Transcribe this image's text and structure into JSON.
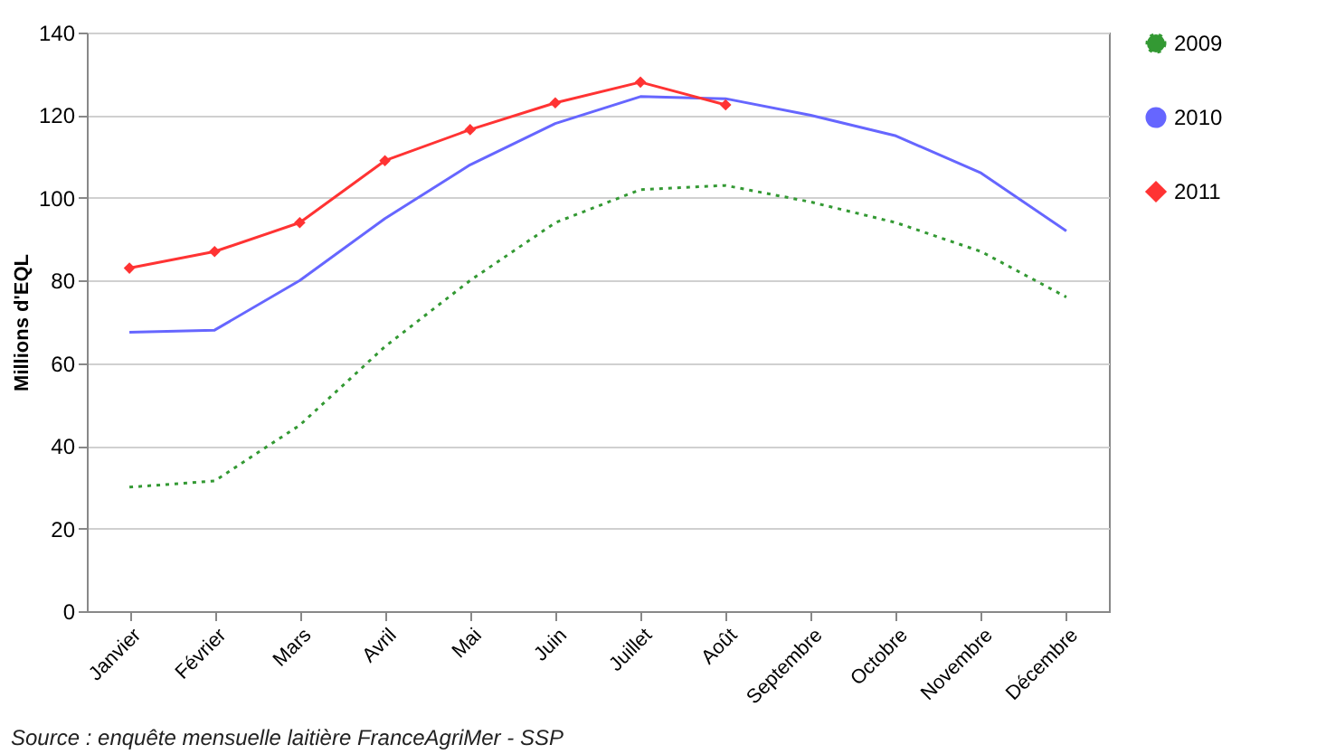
{
  "chart_data": {
    "type": "line",
    "ylabel": "Millions d'EQL",
    "categories": [
      "Janvier",
      "Février",
      "Mars",
      "Avril",
      "Mai",
      "Juin",
      "Juillet",
      "Août",
      "Septembre",
      "Octobre",
      "Novembre",
      "Décembre"
    ],
    "series": [
      {
        "name": "2009",
        "color": "#339933",
        "line_style": "dotted",
        "marker": "none",
        "values": [
          30,
          31.5,
          45,
          64,
          80,
          94,
          102,
          103,
          99,
          94,
          87,
          76
        ]
      },
      {
        "name": "2010",
        "color": "#6666ff",
        "line_style": "solid",
        "marker": "none",
        "values": [
          67.5,
          68,
          80,
          95,
          108,
          118,
          124.5,
          124,
          120,
          115,
          106,
          92
        ]
      },
      {
        "name": "2011",
        "color": "#ff3333",
        "line_style": "solid",
        "marker": "diamond",
        "values": [
          83,
          87,
          94,
          109,
          116.5,
          123,
          128,
          122.5,
          null,
          null,
          null,
          null
        ]
      }
    ],
    "ylim": [
      0,
      140
    ],
    "yticks": [
      0,
      20,
      40,
      60,
      80,
      100,
      120,
      140
    ],
    "grid": "y",
    "legend": "right",
    "annotations": [
      "Source : enquête mensuelle laitière FranceAgriMer - SSP"
    ]
  }
}
